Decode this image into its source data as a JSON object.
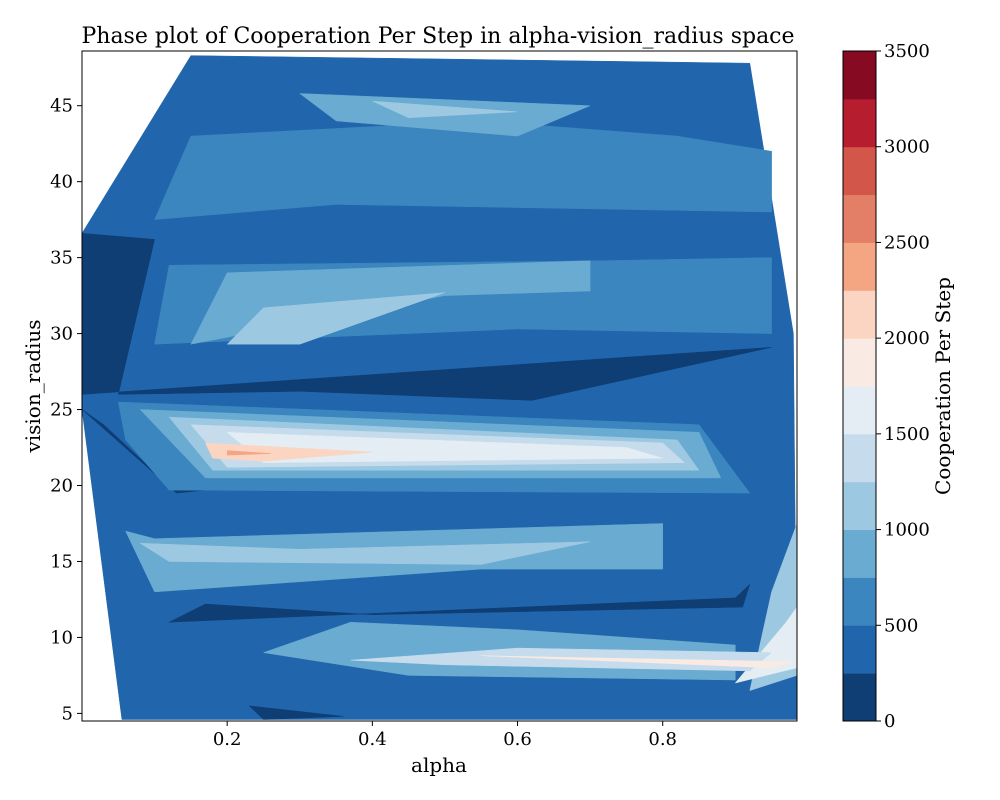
{
  "chart_data": {
    "type": "heatmap",
    "subtype": "filled-contour",
    "title": "Phase plot of Cooperation Per Step in alpha-vision_radius space",
    "xlabel": "alpha",
    "ylabel": "vision_radius",
    "xlim": [
      0.0,
      0.985
    ],
    "ylim": [
      4.5,
      48.6
    ],
    "x_ticks": [
      0.2,
      0.4,
      0.6,
      0.8
    ],
    "y_ticks": [
      5,
      10,
      15,
      20,
      25,
      30,
      35,
      40,
      45
    ],
    "colorbar": {
      "label": "Cooperation Per Step",
      "range": [
        0,
        3500
      ],
      "ticks": [
        0,
        500,
        1000,
        1500,
        2000,
        2500,
        3000,
        3500
      ],
      "levels": [
        0,
        250,
        500,
        750,
        1000,
        1250,
        1500,
        1750,
        2000,
        2250,
        2500,
        2750,
        3000,
        3250,
        3500
      ],
      "colors": [
        "#0f3e75",
        "#2166ac",
        "#3b86bf",
        "#6aabd2",
        "#9dc8e2",
        "#c6dcec",
        "#e3edf3",
        "#f9ebe4",
        "#fbd5c1",
        "#f4a582",
        "#e37f66",
        "#d25649",
        "#b61d2e",
        "#860a22"
      ]
    },
    "regions": [
      {
        "level": 1,
        "points": [
          [
            0.15,
            48.3
          ],
          [
            0.92,
            47.8
          ],
          [
            0.98,
            30
          ],
          [
            0.985,
            4.6
          ],
          [
            0.055,
            4.6
          ],
          [
            0.0,
            25
          ],
          [
            0.0,
            36.6
          ]
        ]
      },
      {
        "level": 2,
        "points": [
          [
            0.15,
            43
          ],
          [
            0.55,
            44
          ],
          [
            0.82,
            43
          ],
          [
            0.95,
            42
          ],
          [
            0.95,
            38
          ],
          [
            0.35,
            38.5
          ],
          [
            0.1,
            37.5
          ]
        ]
      },
      {
        "level": 3,
        "points": [
          [
            0.3,
            45.8
          ],
          [
            0.7,
            45
          ],
          [
            0.6,
            43
          ],
          [
            0.35,
            44
          ]
        ]
      },
      {
        "level": 4,
        "points": [
          [
            0.4,
            45.3
          ],
          [
            0.6,
            44.6
          ],
          [
            0.45,
            44.2
          ]
        ]
      },
      {
        "level": 2,
        "points": [
          [
            0.12,
            34.5
          ],
          [
            0.72,
            34.8
          ],
          [
            0.95,
            35
          ],
          [
            0.95,
            30
          ],
          [
            0.6,
            30.3
          ],
          [
            0.1,
            29.3
          ]
        ]
      },
      {
        "level": 3,
        "points": [
          [
            0.2,
            34
          ],
          [
            0.7,
            34.8
          ],
          [
            0.7,
            32.8
          ],
          [
            0.5,
            32.5
          ],
          [
            0.15,
            29.3
          ]
        ]
      },
      {
        "level": 4,
        "points": [
          [
            0.25,
            31.7
          ],
          [
            0.5,
            32.7
          ],
          [
            0.3,
            29.3
          ],
          [
            0.2,
            29.3
          ]
        ]
      },
      {
        "level": 0,
        "points": [
          [
            0.0,
            36.6
          ],
          [
            0.1,
            36.2
          ],
          [
            0.05,
            26
          ],
          [
            0.3,
            26.2
          ],
          [
            0.62,
            25.6
          ],
          [
            0.95,
            29.1
          ],
          [
            0.0,
            26
          ]
        ]
      },
      {
        "level": 0,
        "points": [
          [
            0.0,
            25
          ],
          [
            0.13,
            19.5
          ],
          [
            0.4,
            20.8
          ],
          [
            0.55,
            20.2
          ],
          [
            0.12,
            20
          ],
          [
            0.03,
            24
          ]
        ]
      },
      {
        "level": 2,
        "points": [
          [
            0.05,
            25.5
          ],
          [
            0.85,
            24
          ],
          [
            0.92,
            19.5
          ],
          [
            0.12,
            19.7
          ],
          [
            0.06,
            23
          ]
        ]
      },
      {
        "level": 3,
        "points": [
          [
            0.08,
            25
          ],
          [
            0.85,
            23.5
          ],
          [
            0.88,
            20.5
          ],
          [
            0.17,
            20.5
          ]
        ]
      },
      {
        "level": 4,
        "points": [
          [
            0.12,
            24.5
          ],
          [
            0.82,
            23
          ],
          [
            0.85,
            21
          ],
          [
            0.18,
            21
          ]
        ]
      },
      {
        "level": 5,
        "points": [
          [
            0.15,
            24
          ],
          [
            0.8,
            22.8
          ],
          [
            0.83,
            21.5
          ],
          [
            0.2,
            21.2
          ]
        ]
      },
      {
        "level": 6,
        "points": [
          [
            0.2,
            23.5
          ],
          [
            0.75,
            22.5
          ],
          [
            0.8,
            21.8
          ],
          [
            0.25,
            21.5
          ]
        ]
      },
      {
        "level": 8,
        "points": [
          [
            0.17,
            22.8
          ],
          [
            0.4,
            22.2
          ],
          [
            0.25,
            21.6
          ],
          [
            0.18,
            21.8
          ]
        ]
      },
      {
        "level": 9,
        "points": [
          [
            0.2,
            22.3
          ],
          [
            0.26,
            22.1
          ],
          [
            0.2,
            22.0
          ]
        ]
      },
      {
        "level": 0,
        "points": [
          [
            0.12,
            11
          ],
          [
            0.9,
            12.6
          ],
          [
            0.92,
            13.5
          ],
          [
            0.91,
            12.0
          ],
          [
            0.4,
            11.5
          ],
          [
            0.17,
            12.2
          ]
        ]
      },
      {
        "level": 3,
        "points": [
          [
            0.06,
            17
          ],
          [
            0.1,
            13
          ],
          [
            0.55,
            14.5
          ],
          [
            0.8,
            14.5
          ],
          [
            0.8,
            17.5
          ],
          [
            0.45,
            17
          ],
          [
            0.1,
            16.5
          ]
        ]
      },
      {
        "level": 4,
        "points": [
          [
            0.08,
            16.2
          ],
          [
            0.12,
            15
          ],
          [
            0.55,
            14.8
          ],
          [
            0.7,
            16.3
          ],
          [
            0.3,
            15.8
          ]
        ]
      },
      {
        "level": 4,
        "points": [
          [
            0.95,
            13
          ],
          [
            0.985,
            17.5
          ],
          [
            0.985,
            7.5
          ],
          [
            0.92,
            6.5
          ]
        ]
      },
      {
        "level": 6,
        "points": [
          [
            0.97,
            11
          ],
          [
            0.985,
            12
          ],
          [
            0.985,
            8
          ],
          [
            0.9,
            7
          ]
        ]
      },
      {
        "level": 3,
        "points": [
          [
            0.25,
            9
          ],
          [
            0.37,
            11
          ],
          [
            0.6,
            10.5
          ],
          [
            0.9,
            9.5
          ],
          [
            0.9,
            7.2
          ],
          [
            0.45,
            7.5
          ]
        ]
      },
      {
        "level": 5,
        "points": [
          [
            0.37,
            8.5
          ],
          [
            0.6,
            9.3
          ],
          [
            0.95,
            9.0
          ],
          [
            0.92,
            7.8
          ],
          [
            0.5,
            8.2
          ]
        ]
      },
      {
        "level": 7,
        "points": [
          [
            0.55,
            8.8
          ],
          [
            0.98,
            8.4
          ],
          [
            0.95,
            8.0
          ]
        ]
      },
      {
        "level": 0,
        "points": [
          [
            0.23,
            5.5
          ],
          [
            0.36,
            4.8
          ],
          [
            0.25,
            4.6
          ]
        ]
      }
    ]
  }
}
